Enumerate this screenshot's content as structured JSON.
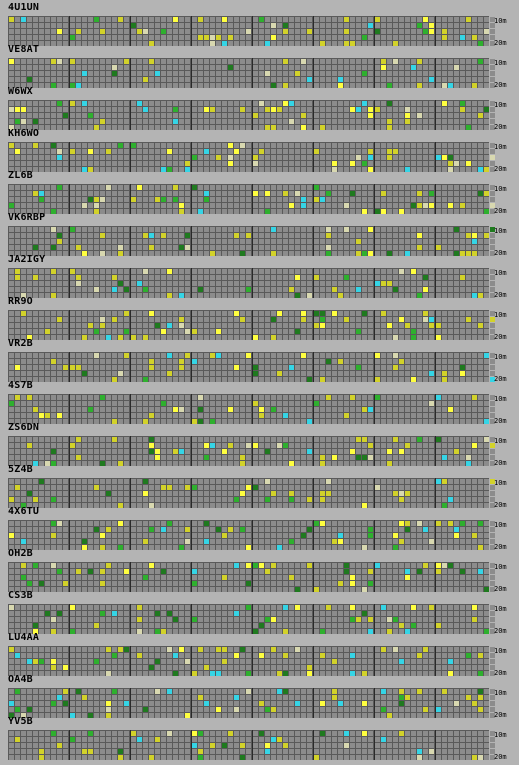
{
  "colors": {
    "background": "#b4b4b4",
    "cell_empty": "#8c8c8c",
    "grid_line": "#5a5a5a",
    "block_divider": "#2a2a2a",
    "signal_yellow": "#d2d22a",
    "signal_bright_yellow": "#ffff40",
    "signal_green": "#2eb02e",
    "signal_dark_green": "#1f7a1f",
    "signal_cyan": "#35d5e6",
    "signal_pale": "#d8d8b0"
  },
  "band_labels": {
    "top": "10m",
    "bottom": "20m"
  },
  "grid": {
    "blocks": 8,
    "cols_per_block": 10,
    "rows": 5
  },
  "stations": [
    {
      "call": "4U1UN",
      "seed": 11
    },
    {
      "call": "VE8AT",
      "seed": 23
    },
    {
      "call": "W6WX",
      "seed": 37
    },
    {
      "call": "KH6WO",
      "seed": 41
    },
    {
      "call": "ZL6B",
      "seed": 53
    },
    {
      "call": "VK6RBP",
      "seed": 67
    },
    {
      "call": "JA2IGY",
      "seed": 71
    },
    {
      "call": "RR9O",
      "seed": 83
    },
    {
      "call": "VR2B",
      "seed": 97
    },
    {
      "call": "4S7B",
      "seed": 101
    },
    {
      "call": "ZS6DN",
      "seed": 113
    },
    {
      "call": "5Z4B",
      "seed": 127
    },
    {
      "call": "4X6TU",
      "seed": 131
    },
    {
      "call": "OH2B",
      "seed": 149
    },
    {
      "call": "CS3B",
      "seed": 151
    },
    {
      "call": "LU4AA",
      "seed": 163
    },
    {
      "call": "OA4B",
      "seed": 173
    },
    {
      "call": "YV5B",
      "seed": 181
    }
  ]
}
